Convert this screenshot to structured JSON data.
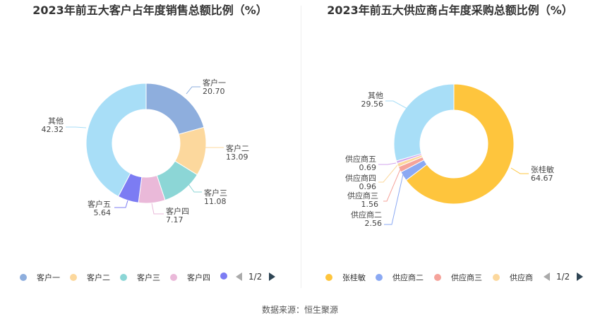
{
  "chart_data": [
    {
      "type": "pie",
      "title": "2023年前五大客户占年度销售总额比例（%）",
      "categories": [
        "客户一",
        "客户二",
        "客户三",
        "客户四",
        "客户五",
        "其他"
      ],
      "values": [
        20.7,
        13.09,
        11.08,
        7.17,
        5.64,
        42.32
      ],
      "value_labels": [
        "20.70",
        "13.09",
        "11.08",
        "7.17",
        "5.64",
        "42.32"
      ],
      "colors": [
        "#8eaedd",
        "#fcd89d",
        "#8cd6d6",
        "#eab9d9",
        "#7c7cf3",
        "#a8def7"
      ],
      "legend": {
        "placement": "bottom",
        "visible_items": [
          "客户一",
          "客户二",
          "客户三",
          "客户四",
          ""
        ],
        "page": "1/2"
      }
    },
    {
      "type": "pie",
      "title": "2023年前五大供应商占年度采购总额比例（%）",
      "categories": [
        "张桂敏",
        "供应商二",
        "供应商三",
        "供应商四",
        "供应商五",
        "其他"
      ],
      "values": [
        64.67,
        2.56,
        1.56,
        0.96,
        0.69,
        29.56
      ],
      "value_labels": [
        "64.67",
        "2.56",
        "1.56",
        "0.96",
        "0.69",
        "29.56"
      ],
      "colors": [
        "#fec53d",
        "#8ba9f3",
        "#f5a39b",
        "#fcd89d",
        "#d3a5ec",
        "#a8def7"
      ],
      "legend": {
        "placement": "bottom",
        "visible_items": [
          "张桂敏",
          "供应商二",
          "供应商三",
          "供应商"
        ],
        "page": "1/2"
      }
    }
  ],
  "source": "数据来源：恒生聚源"
}
